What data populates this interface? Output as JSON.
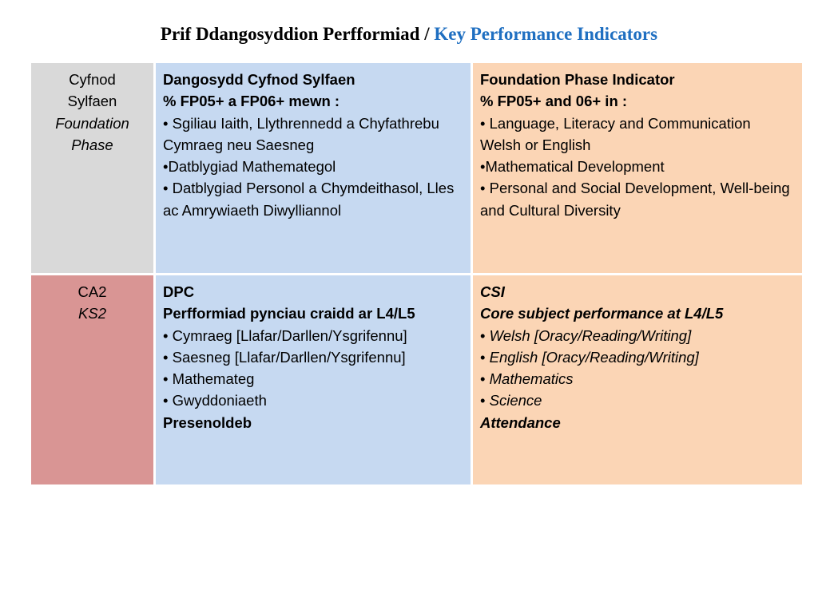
{
  "title": {
    "welsh": "Prif Ddangosyddion Perfformiad /",
    "english": "Key Performance Indicators"
  },
  "colors": {
    "title_english": "#1f6fc1",
    "foundation_label_bg": "#d9d9d9",
    "ks2_label_bg": "#d99594",
    "welsh_column_bg": "#c6d9f1",
    "english_column_bg": "#fbd5b5"
  },
  "rows": [
    {
      "label": {
        "welsh_line1": "Cyfnod",
        "welsh_line2": "Sylfaen",
        "english_line1": "Foundation",
        "english_line2": "Phase"
      },
      "welsh": {
        "heading": "Dangosydd Cyfnod Sylfaen",
        "subheading": "% FP05+ a FP06+ mewn :",
        "items": [
          "• Sgiliau Iaith, Llythrennedd a Chyfathrebu Cymraeg neu Saesneg",
          "•Datblygiad Mathemategol",
          "• Datblygiad Personol a Chymdeithasol, Lles ac  Amrywiaeth Diwylliannol"
        ]
      },
      "english": {
        "heading": "Foundation Phase Indicator",
        "subheading": "% FP05+ and 06+ in :",
        "items": [
          "•  Language, Literacy and Communication Welsh or English",
          "•Mathematical Development",
          "• Personal and Social Development, Well-being and  Cultural Diversity"
        ]
      }
    },
    {
      "label": {
        "welsh_line1": "CA2",
        "english_line1": "KS2"
      },
      "welsh": {
        "heading": "DPC",
        "subheading": "Perfformiad pynciau craidd ar L4/L5",
        "items": [
          "• Cymraeg [Llafar/Darllen/Ysgrifennu]",
          "• Saesneg [Llafar/Darllen/Ysgrifennu]",
          "• Mathemateg",
          "• Gwyddoniaeth"
        ],
        "footer": "Presenoldeb"
      },
      "english": {
        "heading": "CSI",
        "subheading": "Core subject performance at L4/L5",
        "items": [
          {
            "bullet": "• ",
            "text": "Welsh [Oracy/Reading/Writing]"
          },
          {
            "bullet": "• ",
            "text": "English [Oracy/Reading/Writing]"
          },
          {
            "bullet": "• ",
            "text": "Mathematics"
          },
          {
            "bullet": "• ",
            "text": "Science"
          }
        ],
        "footer": "Attendance"
      }
    }
  ]
}
